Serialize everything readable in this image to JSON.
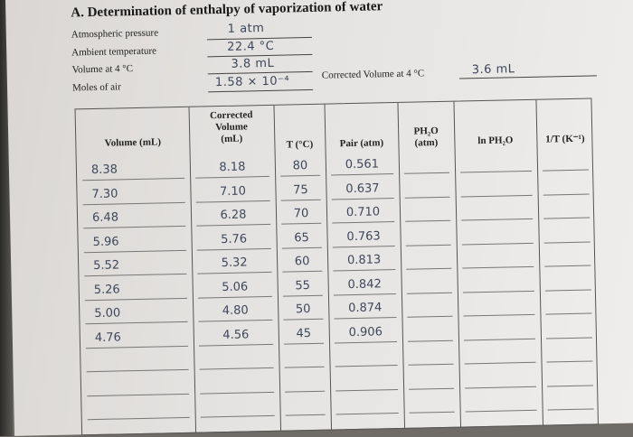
{
  "title": "A. Determination of enthalpy of vaporization of water",
  "info": [
    {
      "label": "Atmospheric pressure",
      "value": "1 atm"
    },
    {
      "label": "Ambient temperature",
      "value": "22.4 °C"
    },
    {
      "label": "Volume at 4 °C",
      "value": "3.8 mL"
    },
    {
      "label": "Moles of air",
      "value": "1.58 × 10⁻⁴"
    }
  ],
  "corrected_volume": {
    "label": "Corrected Volume at 4 °C",
    "value": "3.6 mL"
  },
  "table": {
    "headers": [
      "Volume (mL)",
      "Corrected\nVolume\n(mL)",
      "T (°C)",
      "Pair (atm)",
      "PH₂O\n(atm)",
      "ln PH₂O",
      "1/T (K⁻¹)"
    ],
    "rows": [
      [
        "8.38",
        "8.18",
        "80",
        "0.561"
      ],
      [
        "7.30",
        "7.10",
        "75",
        "0.637"
      ],
      [
        "6.48",
        "6.28",
        "70",
        "0.710"
      ],
      [
        "5.96",
        "5.76",
        "65",
        "0.763"
      ],
      [
        "5.52",
        "5.32",
        "60",
        "0.813"
      ],
      [
        "5.26",
        "5.06",
        "55",
        "0.842"
      ],
      [
        "5.00",
        "4.80",
        "50",
        "0.874"
      ],
      [
        "4.76",
        "4.56",
        "45",
        "0.906"
      ]
    ]
  }
}
